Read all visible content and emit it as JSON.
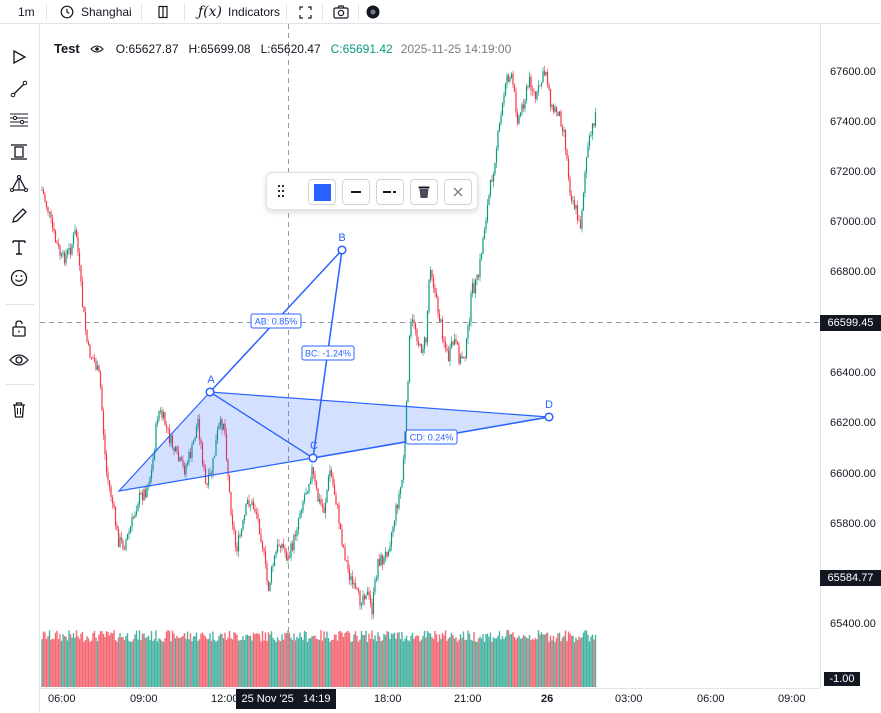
{
  "topbar": {
    "interval": "1m",
    "timezone": "Shanghai",
    "indicators_label": "Indicators"
  },
  "legend": {
    "symbol": "Test",
    "open_label": "O:",
    "open": "65627.87",
    "high_label": "H:",
    "high": "65699.08",
    "low_label": "L:",
    "low": "65620.47",
    "close_label": "C:",
    "close": "65691.42",
    "timestamp": "2025-11-25 14:19:00",
    "close_color": "#089981"
  },
  "pattern": {
    "points": [
      "A",
      "B",
      "C",
      "D"
    ],
    "ab_label": "AB: 0.85%",
    "bc_label": "BC: -1.24%",
    "cd_label": "CD: 0.24%",
    "color": "#2962ff"
  },
  "price_axis": {
    "ticks": [
      "67600.00",
      "67400.00",
      "67200.00",
      "67000.00",
      "66800.00",
      "66400.00",
      "66200.00",
      "66000.00",
      "65800.00",
      "65400.00"
    ],
    "crosshair_price": "66599.45",
    "last_price": "65584.77",
    "volume_value": "-1.00"
  },
  "time_axis": {
    "ticks": [
      "06:00",
      "09:00",
      "12:00",
      "18:00",
      "21:00",
      "26",
      "03:00",
      "06:00",
      "09:00"
    ],
    "crosshair_time": "25 Nov '25   14:19"
  },
  "colors": {
    "up": "#089981",
    "down": "#f23645",
    "accent": "#2962ff"
  },
  "left_toolbar": [
    "cursor-icon",
    "trendline-icon",
    "fib-icon",
    "channel-icon",
    "pattern-icon",
    "brush-icon",
    "text-icon",
    "emoji-icon",
    "lock-icon",
    "eye-icon",
    "trash-icon"
  ]
}
